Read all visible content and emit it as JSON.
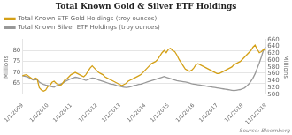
{
  "chart_data": {
    "type": "line",
    "title": "Total Known Gold & Silver ETF Holdings",
    "categories": [
      "1/1/2009",
      null,
      null,
      null,
      null,
      null,
      null,
      null,
      null,
      null,
      null,
      null,
      "1/1/2010",
      null,
      null,
      null,
      null,
      null,
      null,
      null,
      null,
      null,
      null,
      "1/1/2011",
      null,
      null,
      null,
      null,
      null,
      null,
      null,
      null,
      null,
      null,
      null,
      "1/1/2012",
      null,
      null,
      null,
      null,
      null,
      null,
      null,
      null,
      null,
      null,
      "1/1/2013",
      null,
      null,
      null,
      null,
      null,
      null,
      null,
      null,
      null,
      null,
      null,
      "1/1/2014",
      null,
      null,
      null,
      null,
      null,
      null,
      null,
      null,
      null,
      null,
      "1/1/2015",
      null,
      null,
      null,
      null,
      null,
      null,
      null,
      null,
      null,
      null,
      null,
      "1/1/2016",
      null,
      null,
      null,
      null,
      null,
      null,
      null,
      null,
      null,
      null,
      "1/1/2017",
      null,
      null,
      null,
      null,
      null,
      null,
      null,
      null,
      null,
      null,
      null,
      "1/1/2018",
      null,
      null,
      null,
      null,
      null,
      null,
      null,
      null,
      null,
      null,
      "11/1/2019"
    ],
    "series": [
      {
        "name": "Total Known ETF Gold Holdings (troy ounces)",
        "color": "#D4A017",
        "axis": "y",
        "values": [
          68.5,
          68.8,
          69.0,
          68.2,
          67.5,
          66.8,
          67.5,
          67.0,
          63.0,
          62.0,
          61.5,
          62.0,
          63.5,
          64.0,
          65.5,
          66.0,
          65.0,
          64.5,
          64.0,
          65.0,
          66.5,
          67.0,
          68.0,
          69.0,
          69.5,
          70.0,
          69.5,
          69.0,
          68.5,
          68.0,
          69.0,
          70.5,
          72.0,
          73.0,
          72.0,
          71.0,
          70.0,
          69.5,
          69.0,
          68.0,
          67.5,
          67.0,
          66.5,
          66.0,
          65.5,
          65.0,
          64.5,
          64.0,
          64.5,
          65.0,
          66.0,
          66.5,
          67.0,
          67.5,
          68.0,
          68.5,
          69.0,
          70.0,
          71.0,
          72.0,
          73.0,
          74.0,
          74.5,
          75.0,
          76.0,
          77.5,
          79.0,
          80.0,
          79.0,
          80.5,
          81.0,
          80.0,
          79.5,
          78.0,
          76.0,
          74.5,
          73.0,
          71.5,
          71.0,
          70.5,
          71.0,
          72.0,
          73.5,
          74.0,
          73.5,
          73.0,
          72.5,
          72.0,
          71.5,
          71.0,
          70.5,
          70.0,
          69.5,
          69.5,
          70.0,
          70.5,
          71.0,
          71.5,
          72.0,
          72.5,
          73.5,
          74.0,
          74.5,
          75.0,
          76.0,
          77.0,
          78.0,
          79.0,
          80.0,
          81.5,
          82.5,
          80.5,
          79.0,
          79.5,
          80.5,
          80.0
        ]
      },
      {
        "name": "Total Known Silver ETF Holdings (troy ounces)",
        "color": "#999999",
        "axis": "y2",
        "values": [
          554,
          553,
          552,
          549,
          546,
          542,
          543,
          543,
          536,
          532,
          529,
          527,
          526,
          524,
          522,
          521,
          525,
          527,
          530,
          533,
          537,
          540,
          543,
          546,
          548,
          550,
          549,
          547,
          545,
          543,
          541,
          543,
          546,
          548,
          547,
          545,
          542,
          540,
          538,
          536,
          534,
          532,
          530,
          529,
          527,
          525,
          524,
          522,
          521,
          520,
          521,
          522,
          524,
          526,
          527,
          529,
          530,
          532,
          534,
          536,
          538,
          540,
          542,
          544,
          546,
          548,
          550,
          552,
          550,
          548,
          546,
          544,
          542,
          540,
          539,
          538,
          537,
          536,
          535,
          533,
          531,
          530,
          529,
          528,
          527,
          526,
          525,
          524,
          523,
          522,
          521,
          520,
          519,
          518,
          517,
          516,
          515,
          514,
          513,
          512,
          511,
          512,
          513,
          514,
          516,
          519,
          524,
          530,
          538,
          548,
          560,
          576,
          592,
          610,
          630,
          638
        ]
      }
    ],
    "ylabel": "Millions",
    "y2label": "Millions",
    "ylim": [
      60,
      85
    ],
    "yticks": [
      65,
      70,
      75,
      80
    ],
    "y2lim": [
      500,
      660
    ],
    "y2ticks": [
      500,
      520,
      540,
      560,
      580,
      600,
      620,
      640,
      660
    ],
    "grid": true,
    "legend": "upper left",
    "annotations": [
      "Source: Bloomberg"
    ]
  }
}
